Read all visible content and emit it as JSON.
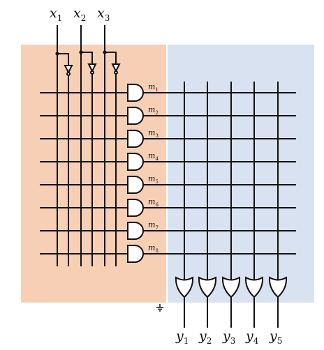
{
  "inputs": [
    {
      "var": "x",
      "sub": "1"
    },
    {
      "var": "x",
      "sub": "2"
    },
    {
      "var": "x",
      "sub": "3"
    }
  ],
  "minterms": [
    {
      "var": "m",
      "sub": "1"
    },
    {
      "var": "m",
      "sub": "2"
    },
    {
      "var": "m",
      "sub": "3"
    },
    {
      "var": "m",
      "sub": "4"
    },
    {
      "var": "m",
      "sub": "5"
    },
    {
      "var": "m",
      "sub": "6"
    },
    {
      "var": "m",
      "sub": "7"
    },
    {
      "var": "m",
      "sub": "8"
    }
  ],
  "outputs": [
    {
      "var": "y",
      "sub": "1"
    },
    {
      "var": "y",
      "sub": "2"
    },
    {
      "var": "y",
      "sub": "3"
    },
    {
      "var": "y",
      "sub": "4"
    },
    {
      "var": "y",
      "sub": "5"
    }
  ],
  "colors": {
    "and_plane": "#f7cfb5",
    "or_plane": "#d9e2f0",
    "wire": "#111111",
    "gate_fill": "#ffffff"
  }
}
